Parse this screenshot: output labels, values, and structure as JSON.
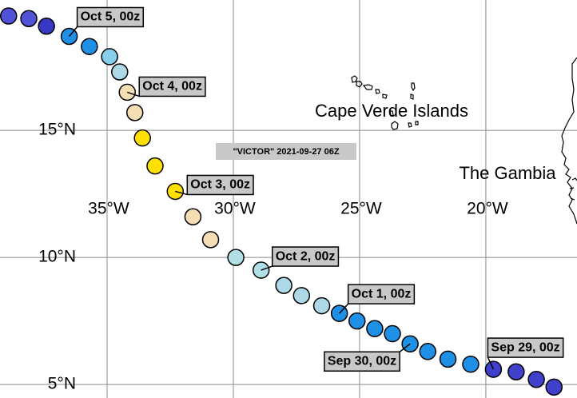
{
  "storm_label": "\"VICTOR\" 2021-09-27 06Z",
  "places": [
    "Cape Verde Islands",
    "The Gambia"
  ],
  "map": {
    "xlim": [
      -39.24,
      -16.39
    ],
    "ylim": [
      4.47,
      20.13
    ],
    "xticks": [
      {
        "value": -35,
        "label": "35°W"
      },
      {
        "value": -30,
        "label": "30°W"
      },
      {
        "value": -25,
        "label": "25°W"
      },
      {
        "value": -20,
        "label": "20°W"
      }
    ],
    "yticks": [
      {
        "value": 15,
        "label": "15°N"
      },
      {
        "value": 10,
        "label": "10°N"
      },
      {
        "value": 5,
        "label": "5°N"
      }
    ],
    "track": [
      {
        "lon": -38.9,
        "lat": 19.5,
        "color": "#5252d6"
      },
      {
        "lon": -38.1,
        "lat": 19.4,
        "color": "#5252d6"
      },
      {
        "lon": -37.4,
        "lat": 19.1,
        "color": "#3838c4"
      },
      {
        "lon": -36.5,
        "lat": 18.7,
        "color": "#1e90e6",
        "label": "Oct 5, 00z"
      },
      {
        "lon": -35.7,
        "lat": 18.3,
        "color": "#1e90e6"
      },
      {
        "lon": -34.9,
        "lat": 17.9,
        "color": "#87ceeb"
      },
      {
        "lon": -34.5,
        "lat": 17.3,
        "color": "#add8e6"
      },
      {
        "lon": -34.2,
        "lat": 16.5,
        "color": "#f5deb3",
        "label": "Oct 4, 00z"
      },
      {
        "lon": -33.9,
        "lat": 15.7,
        "color": "#f5deb3"
      },
      {
        "lon": -33.6,
        "lat": 14.7,
        "color": "#ffe000"
      },
      {
        "lon": -33.1,
        "lat": 13.6,
        "color": "#ffe000"
      },
      {
        "lon": -32.3,
        "lat": 12.6,
        "color": "#ffe000",
        "label": "Oct 3, 00z"
      },
      {
        "lon": -31.6,
        "lat": 11.6,
        "color": "#f5deb3"
      },
      {
        "lon": -30.9,
        "lat": 10.7,
        "color": "#f5deb3"
      },
      {
        "lon": -29.9,
        "lat": 10.0,
        "color": "#b0e0e6"
      },
      {
        "lon": -28.9,
        "lat": 9.5,
        "color": "#b0e0e6",
        "label": "Oct 2, 00z"
      },
      {
        "lon": -28.0,
        "lat": 8.9,
        "color": "#add8e6"
      },
      {
        "lon": -27.3,
        "lat": 8.5,
        "color": "#add8e6"
      },
      {
        "lon": -26.5,
        "lat": 8.1,
        "color": "#add8e6"
      },
      {
        "lon": -25.8,
        "lat": 7.8,
        "color": "#1e90e6",
        "label": "Oct 1, 00z"
      },
      {
        "lon": -25.1,
        "lat": 7.5,
        "color": "#1e90e6"
      },
      {
        "lon": -24.4,
        "lat": 7.2,
        "color": "#1e90e6"
      },
      {
        "lon": -23.7,
        "lat": 7.0,
        "color": "#1e90e6"
      },
      {
        "lon": -23.0,
        "lat": 6.6,
        "color": "#1e90e6",
        "label": "Sep 30, 00z"
      },
      {
        "lon": -22.3,
        "lat": 6.3,
        "color": "#1e90e6"
      },
      {
        "lon": -21.5,
        "lat": 6.0,
        "color": "#1e90e6"
      },
      {
        "lon": -20.6,
        "lat": 5.8,
        "color": "#1e90e6"
      },
      {
        "lon": -19.7,
        "lat": 5.6,
        "color": "#4040cc",
        "label": "Sep 29, 00z"
      },
      {
        "lon": -18.8,
        "lat": 5.5,
        "color": "#4040cc"
      },
      {
        "lon": -18.0,
        "lat": 5.2,
        "color": "#4040cc"
      },
      {
        "lon": -17.3,
        "lat": 4.9,
        "color": "#4040cc"
      }
    ]
  }
}
